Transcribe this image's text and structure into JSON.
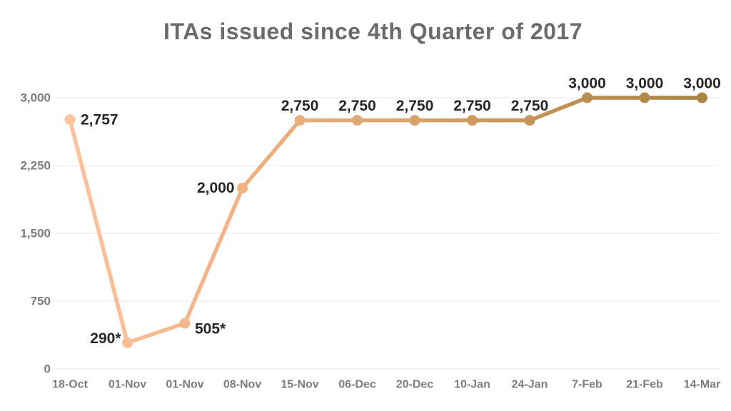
{
  "title": "ITAs issued since 4th Quarter of 2017",
  "chart_data": {
    "type": "line",
    "title": "ITAs issued since 4th Quarter of 2017",
    "x": [
      "18-Oct",
      "01-Nov",
      "01-Nov",
      "08-Nov",
      "15-Nov",
      "06-Dec",
      "20-Dec",
      "10-Jan",
      "24-Jan",
      "7-Feb",
      "21-Feb",
      "14-Mar"
    ],
    "series": [
      {
        "name": "ITAs issued",
        "values": [
          2757,
          290,
          505,
          2000,
          2750,
          2750,
          2750,
          2750,
          2750,
          3000,
          3000,
          3000
        ]
      }
    ],
    "point_labels": [
      "2,757",
      "290*",
      "505*",
      "2,000",
      "2,750",
      "2,750",
      "2,750",
      "2,750",
      "2,750",
      "3,000",
      "3,000",
      "3,000"
    ],
    "label_positions": [
      "right",
      "left-above",
      "right-below",
      "left",
      "above",
      "above",
      "above",
      "above",
      "above",
      "above",
      "above",
      "above"
    ],
    "xlabel": "",
    "ylabel": "",
    "ylim": [
      0,
      3000
    ],
    "yticks": {
      "values": [
        0,
        750,
        1500,
        2250,
        3000
      ],
      "labels": [
        "0",
        "750",
        "1,500",
        "2,250",
        "3,000"
      ]
    },
    "grid": true,
    "legend": "none",
    "style": {
      "line_gradient": [
        "#FCC39C",
        "#F2B385",
        "#DCA76E",
        "#C39254",
        "#AA8441"
      ],
      "title_color": "#6B6B6B",
      "tick_color": "#7C7C7C",
      "grid_color": "#F0F0F0",
      "point_label_color": "#262626",
      "background": "#FFFFFF"
    }
  }
}
